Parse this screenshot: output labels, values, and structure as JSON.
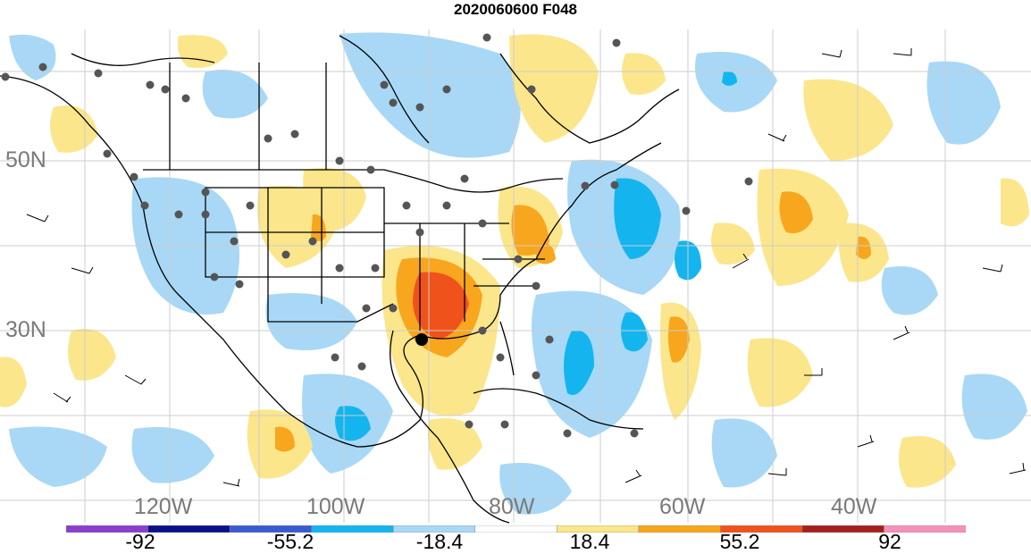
{
  "title": "2020060600 F048",
  "lat_labels": [
    "50N",
    "30N"
  ],
  "lon_labels": [
    "120W",
    "100W",
    "80W",
    "60W",
    "40W"
  ],
  "colorbar": {
    "colors": [
      "#8a3fcc",
      "#0c1086",
      "#3a5bd0",
      "#14b5ee",
      "#a8d8f6",
      "#ffffff",
      "#fbe68c",
      "#f7a61e",
      "#f0521b",
      "#a5201e",
      "#f591b9"
    ],
    "labels": [
      "-92",
      "-55.2",
      "-18.4",
      "18.4",
      "55.2",
      "92"
    ]
  },
  "colors": {
    "light_blue": "#a8d8f6",
    "mid_blue": "#14b5ee",
    "light_yellow": "#fbe68c",
    "orange": "#f7a61e",
    "red_orange": "#f0521b",
    "stations": "#555555"
  }
}
